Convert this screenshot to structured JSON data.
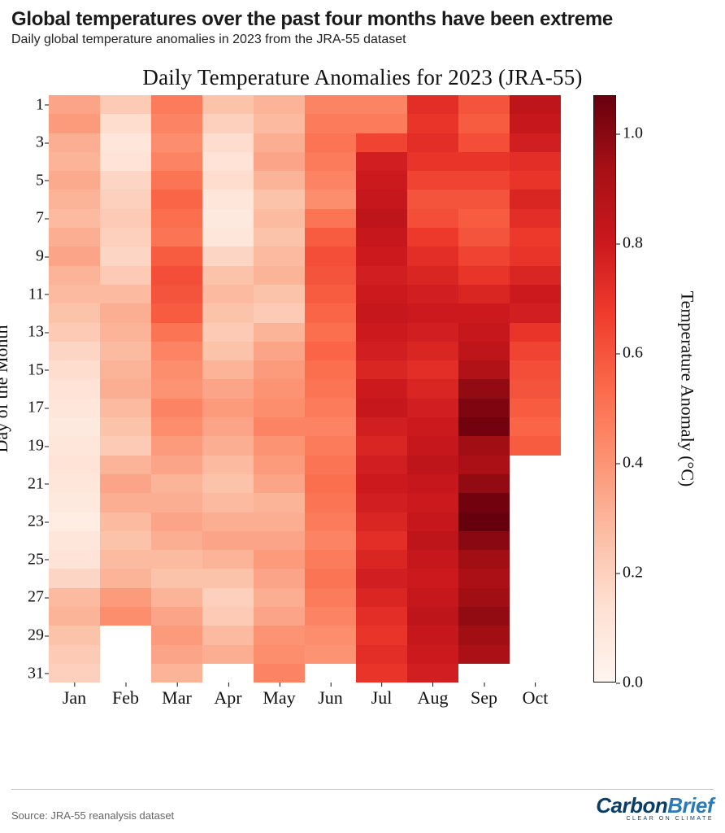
{
  "headline": "Global temperatures over the past four months have been extreme",
  "subhead": "Daily global temperature anomalies in 2023 from the JRA-55 dataset",
  "source": "Source: JRA-55 reanalysis dataset",
  "logo": {
    "part1": "Carbon",
    "part2": "Brief",
    "tagline": "CLEAR ON CLIMATE"
  },
  "chart": {
    "type": "heatmap",
    "title": "Daily Temperature Anomalies for 2023 (JRA-55)",
    "xlabel": "",
    "ylabel": "Day of the Month",
    "colorbar_label": "Temperature Anomaly (°C)",
    "title_fontsize": 27,
    "axis_fontsize": 22,
    "tick_fontsize": 20,
    "font_family": "Georgia, serif",
    "background_color": "#ffffff",
    "text_color": "#111111",
    "months": [
      "Jan",
      "Feb",
      "Mar",
      "Apr",
      "May",
      "Jun",
      "Jul",
      "Aug",
      "Sep",
      "Oct"
    ],
    "days_in_month": [
      31,
      28,
      31,
      30,
      31,
      30,
      31,
      31,
      30,
      19
    ],
    "ytick_labels": [
      "1",
      "3",
      "5",
      "7",
      "9",
      "11",
      "13",
      "15",
      "17",
      "19",
      "21",
      "23",
      "25",
      "27",
      "29",
      "31"
    ],
    "ytick_positions": [
      1,
      3,
      5,
      7,
      9,
      11,
      13,
      15,
      17,
      19,
      21,
      23,
      25,
      27,
      29,
      31
    ],
    "colorbar": {
      "min": 0.0,
      "max": 1.07,
      "ticks": [
        0.0,
        0.2,
        0.4,
        0.6,
        0.8,
        1.0
      ],
      "tick_labels": [
        "0.0",
        "0.2",
        "0.4",
        "0.6",
        "0.8",
        "1.0"
      ],
      "stops": [
        {
          "t": 0.0,
          "color": "#fff5f0"
        },
        {
          "t": 0.13,
          "color": "#fee0d2"
        },
        {
          "t": 0.26,
          "color": "#fcbba1"
        },
        {
          "t": 0.38,
          "color": "#fc9272"
        },
        {
          "t": 0.5,
          "color": "#fb6a4a"
        },
        {
          "t": 0.63,
          "color": "#ef3b2c"
        },
        {
          "t": 0.75,
          "color": "#cb181d"
        },
        {
          "t": 0.88,
          "color": "#a50f15"
        },
        {
          "t": 1.0,
          "color": "#67000d"
        }
      ]
    },
    "values": {
      "Jan": [
        0.35,
        0.38,
        0.32,
        0.3,
        0.33,
        0.3,
        0.28,
        0.32,
        0.35,
        0.3,
        0.28,
        0.25,
        0.22,
        0.18,
        0.15,
        0.12,
        0.1,
        0.08,
        0.1,
        0.12,
        0.1,
        0.08,
        0.06,
        0.1,
        0.12,
        0.18,
        0.28,
        0.3,
        0.25,
        0.22,
        0.2
      ],
      "Feb": [
        0.22,
        0.15,
        0.1,
        0.12,
        0.18,
        0.2,
        0.22,
        0.2,
        0.18,
        0.22,
        0.28,
        0.32,
        0.3,
        0.28,
        0.3,
        0.32,
        0.28,
        0.25,
        0.22,
        0.3,
        0.35,
        0.32,
        0.28,
        0.25,
        0.28,
        0.3,
        0.38,
        0.42
      ],
      "Mar": [
        0.48,
        0.45,
        0.42,
        0.45,
        0.5,
        0.55,
        0.52,
        0.5,
        0.58,
        0.62,
        0.6,
        0.58,
        0.5,
        0.45,
        0.42,
        0.4,
        0.45,
        0.42,
        0.38,
        0.35,
        0.3,
        0.32,
        0.35,
        0.32,
        0.28,
        0.25,
        0.3,
        0.35,
        0.38,
        0.35,
        0.3
      ],
      "Apr": [
        0.25,
        0.2,
        0.15,
        0.12,
        0.15,
        0.1,
        0.08,
        0.1,
        0.18,
        0.25,
        0.28,
        0.25,
        0.22,
        0.25,
        0.3,
        0.35,
        0.38,
        0.35,
        0.32,
        0.28,
        0.25,
        0.28,
        0.32,
        0.35,
        0.3,
        0.25,
        0.2,
        0.22,
        0.28,
        0.32
      ],
      "May": [
        0.3,
        0.28,
        0.32,
        0.35,
        0.3,
        0.25,
        0.28,
        0.25,
        0.28,
        0.3,
        0.25,
        0.22,
        0.3,
        0.35,
        0.38,
        0.4,
        0.42,
        0.45,
        0.4,
        0.38,
        0.35,
        0.3,
        0.32,
        0.35,
        0.38,
        0.35,
        0.32,
        0.35,
        0.4,
        0.42,
        0.45
      ],
      "Jun": [
        0.45,
        0.48,
        0.5,
        0.48,
        0.45,
        0.42,
        0.5,
        0.58,
        0.62,
        0.6,
        0.58,
        0.55,
        0.52,
        0.55,
        0.52,
        0.5,
        0.48,
        0.45,
        0.48,
        0.5,
        0.52,
        0.5,
        0.48,
        0.45,
        0.48,
        0.5,
        0.48,
        0.45,
        0.42,
        0.4
      ],
      "Jul": [
        0.45,
        0.48,
        0.65,
        0.78,
        0.8,
        0.82,
        0.85,
        0.82,
        0.8,
        0.78,
        0.8,
        0.82,
        0.8,
        0.78,
        0.75,
        0.8,
        0.82,
        0.78,
        0.75,
        0.78,
        0.8,
        0.78,
        0.75,
        0.72,
        0.75,
        0.78,
        0.75,
        0.72,
        0.7,
        0.72,
        0.7
      ],
      "Aug": [
        0.72,
        0.7,
        0.72,
        0.7,
        0.65,
        0.6,
        0.62,
        0.68,
        0.72,
        0.75,
        0.78,
        0.8,
        0.78,
        0.75,
        0.72,
        0.75,
        0.78,
        0.8,
        0.82,
        0.85,
        0.82,
        0.8,
        0.82,
        0.85,
        0.82,
        0.8,
        0.82,
        0.85,
        0.82,
        0.8,
        0.78
      ],
      "Sep": [
        0.6,
        0.58,
        0.62,
        0.7,
        0.65,
        0.6,
        0.58,
        0.6,
        0.65,
        0.7,
        0.75,
        0.8,
        0.82,
        0.85,
        0.9,
        0.98,
        1.02,
        1.05,
        0.95,
        0.92,
        0.98,
        1.05,
        1.07,
        1.0,
        0.95,
        0.92,
        0.95,
        0.98,
        0.95,
        0.92
      ],
      "Oct": [
        0.85,
        0.82,
        0.78,
        0.72,
        0.7,
        0.75,
        0.72,
        0.68,
        0.7,
        0.75,
        0.8,
        0.78,
        0.7,
        0.65,
        0.62,
        0.6,
        0.58,
        0.55,
        0.58
      ]
    }
  }
}
